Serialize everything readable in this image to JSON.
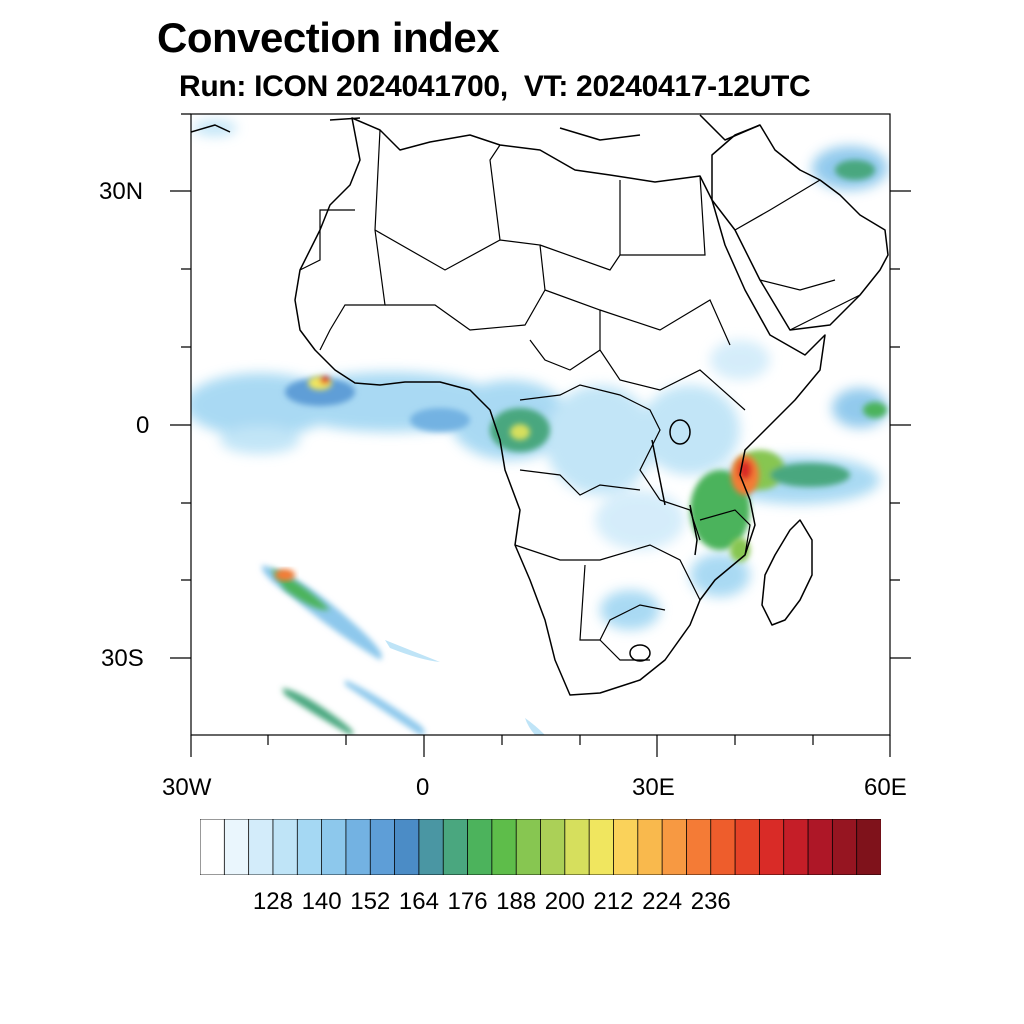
{
  "header": {
    "title": "Convection index",
    "subtitle": "Run: ICON 2024041700,  VT: 20240417-12UTC"
  },
  "axes": {
    "y_labels": [
      "30N",
      "0",
      "30S"
    ],
    "x_labels": [
      "30W",
      "0",
      "30E",
      "60E"
    ]
  },
  "map_data": {
    "type": "contour-fill",
    "region": "Africa",
    "lon_range": [
      -30,
      60
    ],
    "lat_range": [
      -40,
      40
    ],
    "variable": "Convection index"
  },
  "colorbar": {
    "colors": [
      "#ffffff",
      "#eaf6fd",
      "#d3ecfa",
      "#bfe4f7",
      "#a5d8f3",
      "#8dc8ec",
      "#73b2e2",
      "#5e9ed7",
      "#4b8cc6",
      "#4a96a3",
      "#4aa77f",
      "#4cb35c",
      "#5ebd4a",
      "#87c651",
      "#abd057",
      "#d6df5d",
      "#f0e65f",
      "#fad25a",
      "#f9b94d",
      "#f79942",
      "#f47b36",
      "#ee5d2c",
      "#e54227",
      "#d92b27",
      "#c51e28",
      "#ae1727",
      "#961521",
      "#7f121b"
    ],
    "tick_labels": [
      "128",
      "140",
      "152",
      "164",
      "176",
      "188",
      "200",
      "212",
      "224",
      "236"
    ]
  }
}
